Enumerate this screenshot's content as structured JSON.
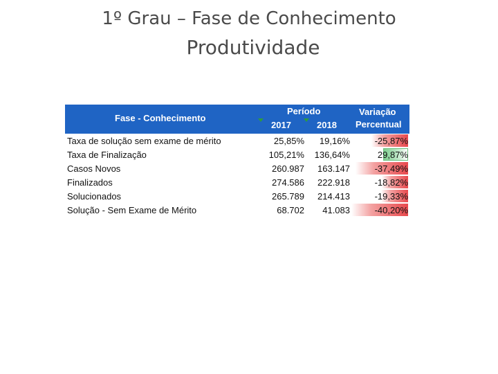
{
  "title": "1º Grau – Fase de Conhecimento",
  "subtitle": "Produtividade",
  "table": {
    "header": {
      "fase": "Fase - Conhecimento",
      "periodo": "Período",
      "year_2017": "2017",
      "year_2018": "2018",
      "variacao_line1": "Variação",
      "variacao_line2": "Percentual"
    },
    "colors": {
      "header_bg": "#1f64c4",
      "negative_bar": "#e8484c",
      "positive_bar": "#7fce8f"
    },
    "rows": [
      {
        "label": "Taxa de solução sem exame de mérito",
        "v2017": "25,85%",
        "v2018": "19,16%",
        "variacao": "-25,87%",
        "pct": -25.87
      },
      {
        "label": "Taxa de Finalização",
        "v2017": "105,21%",
        "v2018": "136,64%",
        "variacao": "29,87%",
        "pct": 29.87
      },
      {
        "label": "Casos Novos",
        "v2017": "260.987",
        "v2018": "163.147",
        "variacao": "-37,49%",
        "pct": -37.49
      },
      {
        "label": "Finalizados",
        "v2017": "274.586",
        "v2018": "222.918",
        "variacao": "-18,82%",
        "pct": -18.82
      },
      {
        "label": "Solucionados",
        "v2017": "265.789",
        "v2018": "214.413",
        "variacao": "-19,33%",
        "pct": -19.33
      },
      {
        "label": "Solução - Sem Exame de Mérito",
        "v2017": "68.702",
        "v2018": "41.083",
        "variacao": "-40,20%",
        "pct": -40.2
      }
    ]
  }
}
